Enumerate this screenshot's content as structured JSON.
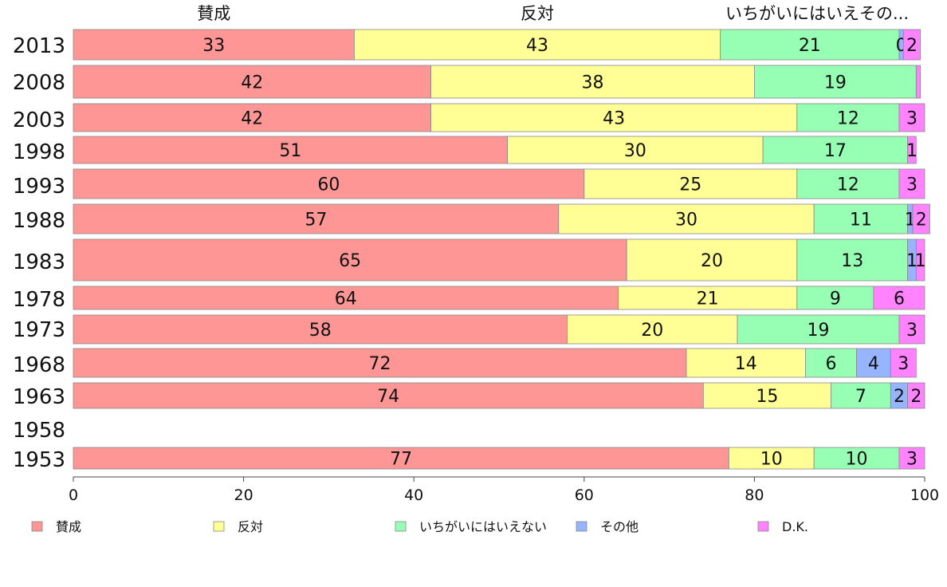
{
  "chart_data": {
    "type": "bar",
    "orientation": "horizontal",
    "stacked": true,
    "percent": true,
    "categories": [
      "2013",
      "2008",
      "2003",
      "1998",
      "1993",
      "1988",
      "1983",
      "1978",
      "1973",
      "1968",
      "1963",
      "1958",
      "1953"
    ],
    "series": [
      {
        "name": "賛成",
        "color": "#ff9696",
        "values": [
          33,
          42,
          42,
          51,
          60,
          57,
          65,
          64,
          58,
          72,
          74,
          null,
          77
        ],
        "labels": [
          "33",
          "42",
          "42",
          "51",
          "60",
          "57",
          "65",
          "64",
          "58",
          "72",
          "74",
          "",
          "77"
        ]
      },
      {
        "name": "反対",
        "color": "#ffff96",
        "values": [
          43,
          38,
          43,
          30,
          25,
          30,
          20,
          21,
          20,
          14,
          15,
          null,
          10
        ],
        "labels": [
          "43",
          "38",
          "43",
          "30",
          "25",
          "30",
          "20",
          "21",
          "20",
          "14",
          "15",
          "",
          "10"
        ]
      },
      {
        "name": "いちがいにはいえない",
        "color": "#96ffb4",
        "values": [
          21,
          19,
          12,
          17,
          12,
          11,
          13,
          9,
          19,
          6,
          7,
          null,
          10
        ],
        "labels": [
          "21",
          "19",
          "12",
          "17",
          "12",
          "11",
          "13",
          "9",
          "19",
          "6",
          "7",
          "",
          "10"
        ]
      },
      {
        "name": "その他",
        "color": "#96b4ff",
        "values": [
          0.5,
          0,
          0,
          0,
          0,
          0.6,
          1,
          0,
          0,
          4,
          2,
          null,
          0
        ],
        "labels": [
          "0",
          "",
          "",
          "",
          "",
          "1",
          "1",
          "",
          "",
          "4",
          "2",
          "",
          ""
        ]
      },
      {
        "name": "D.K.",
        "color": "#ff82ff",
        "values": [
          2,
          0.5,
          3,
          1,
          3,
          2,
          1,
          6,
          3,
          3,
          2,
          null,
          3
        ],
        "labels": [
          "2",
          "",
          "3",
          "1",
          "3",
          "2",
          "1",
          "6",
          "3",
          "3",
          "2",
          "",
          "3"
        ]
      }
    ],
    "column_headers": [
      "賛成",
      "反対",
      "いちがいにはいえその..."
    ],
    "xlim": [
      0,
      100
    ],
    "xticks": [
      "0",
      "20",
      "40",
      "60",
      "80",
      "100"
    ],
    "grid": false,
    "legend": "bottom"
  }
}
